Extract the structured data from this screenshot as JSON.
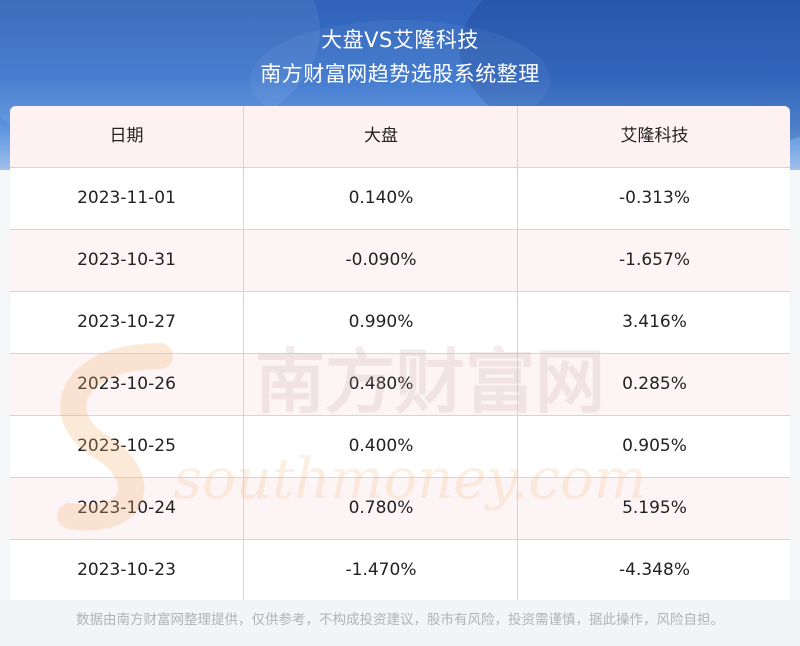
{
  "header": {
    "title": "大盘VS艾隆科技",
    "subtitle": "南方财富网趋势选股系统整理"
  },
  "table": {
    "columns": [
      "日期",
      "大盘",
      "艾隆科技"
    ],
    "rows": [
      [
        "2023-11-01",
        "0.140%",
        "-0.313%"
      ],
      [
        "2023-10-31",
        "-0.090%",
        "-1.657%"
      ],
      [
        "2023-10-27",
        "0.990%",
        "3.416%"
      ],
      [
        "2023-10-26",
        "0.480%",
        "0.285%"
      ],
      [
        "2023-10-25",
        "0.400%",
        "0.905%"
      ],
      [
        "2023-10-24",
        "0.780%",
        "5.195%"
      ],
      [
        "2023-10-23",
        "-1.470%",
        "-4.348%"
      ]
    ]
  },
  "watermark": {
    "chinese": "南方财富网",
    "latin": "southmoney.com"
  },
  "footer": {
    "disclaimer": "数据由南方财富网整理提供，仅供参考，不构成投资建议，股市有风险，投资需谨慎，据此操作，风险自担。"
  },
  "colors": {
    "header_blue": "#3a74cc",
    "row_border": "#f0c9cf",
    "header_row_bg": "#fdf1f2",
    "footer_text": "#b3b3b3"
  }
}
